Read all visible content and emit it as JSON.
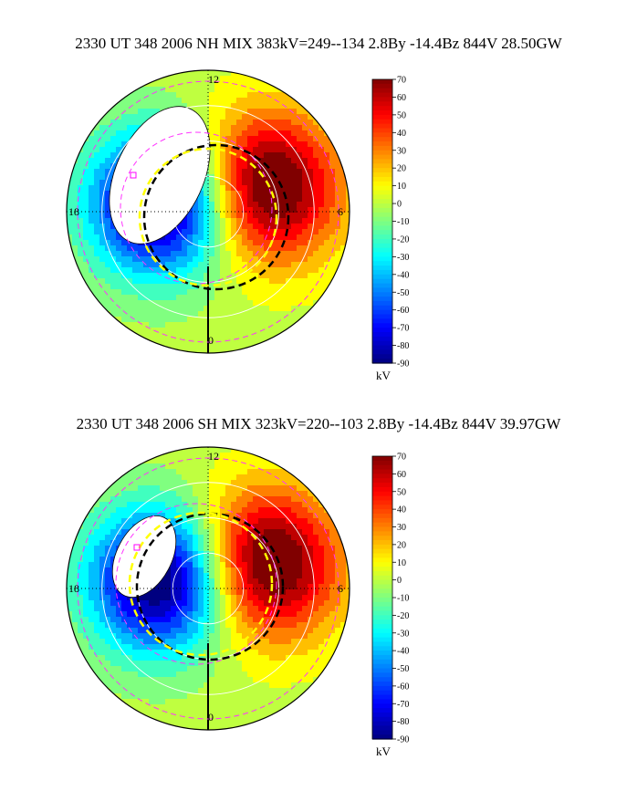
{
  "chart_data": [
    {
      "type": "heatmap",
      "hemisphere": "NH",
      "title": "2330 UT 348 2006 NH MIX 383kV=249--134  2.8By -14.4Bz 844V 28.50GW",
      "mlt_labels": [
        "12",
        "18",
        "6",
        "0"
      ],
      "colorbar": {
        "unit": "kV",
        "min": -90,
        "max": 70,
        "ticks": [
          70,
          60,
          50,
          40,
          30,
          20,
          10,
          0,
          -10,
          -20,
          -30,
          -40,
          -50,
          -60,
          -70,
          -80,
          -90
        ],
        "tick_labels": [
          "70",
          "60",
          "50",
          "40",
          "30",
          "20",
          "10",
          "0",
          "-10",
          "-20",
          "-30",
          "-40",
          "-50",
          "-60",
          "-70",
          "-80",
          "-90"
        ]
      }
    },
    {
      "type": "heatmap",
      "hemisphere": "SH",
      "title": "2330 UT 348 2006 SH MIX 323kV=220--103  2.8By -14.4Bz 844V 39.97GW",
      "mlt_labels": [
        "12",
        "18",
        "6",
        "0"
      ],
      "colorbar": {
        "unit": "kV",
        "min": -90,
        "max": 70,
        "ticks": [
          70,
          60,
          50,
          40,
          30,
          20,
          10,
          0,
          -10,
          -20,
          -30,
          -40,
          -50,
          -60,
          -70,
          -80,
          -90
        ],
        "tick_labels": [
          "70",
          "60",
          "50",
          "40",
          "30",
          "20",
          "10",
          "0",
          "-10",
          "-20",
          "-30",
          "-40",
          "-50",
          "-60",
          "-70",
          "-80",
          "-90"
        ]
      }
    }
  ]
}
